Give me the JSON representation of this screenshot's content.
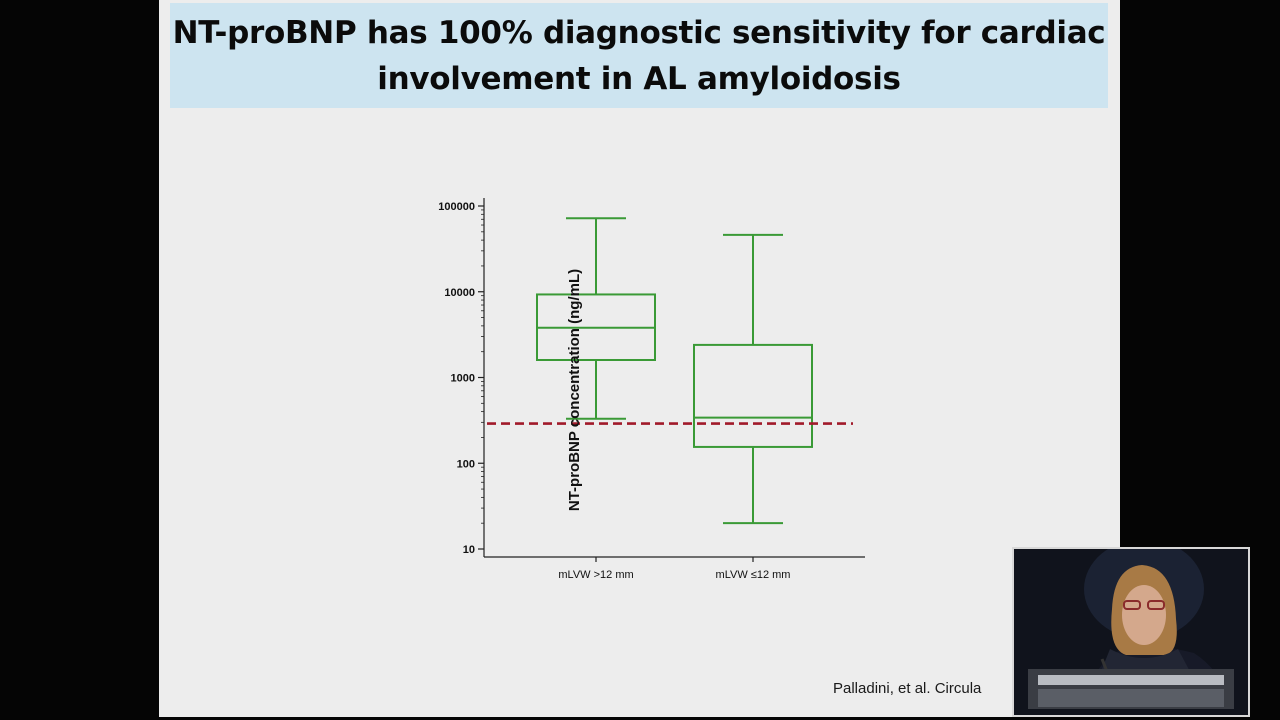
{
  "slide": {
    "title_line1": "NT-proBNP has 100% diagnostic sensitivity for cardiac",
    "title_line2": "involvement in AL amyloidosis",
    "citation": "Palladini, et al. Circula"
  },
  "chart_data": {
    "type": "boxplot",
    "scale": "log",
    "ylabel": "NT-proBNP concentration (ng/mL)",
    "ylim": [
      10,
      100000
    ],
    "yticks": [
      "100000",
      "10000",
      "1000",
      "100",
      "10"
    ],
    "categories": [
      "mLVW >12 mm",
      "mLVW ≤12 mm"
    ],
    "boxes": [
      {
        "name": "mLVW >12 mm",
        "min": 330,
        "q1": 1600,
        "median": 3800,
        "q3": 9300,
        "max": 72000
      },
      {
        "name": "mLVW ≤12 mm",
        "min": 20,
        "q1": 155,
        "median": 340,
        "q3": 2400,
        "max": 46000
      }
    ],
    "threshold": 290,
    "colors": {
      "box": "#3a9a36",
      "threshold": "#a11a2a",
      "axis": "#222222"
    }
  },
  "video_inset": {
    "icon": "presenter-video-icon"
  }
}
